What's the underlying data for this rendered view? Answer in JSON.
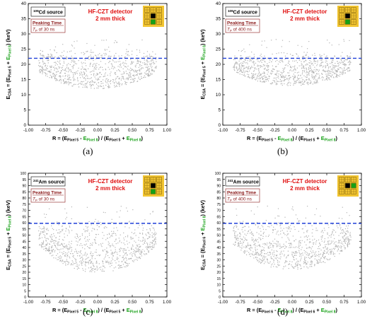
{
  "colors": {
    "points": "#b4b4b4",
    "dashline": "#1f3fd8",
    "red": "#e01010",
    "green": "#16a016",
    "brown": "#8b1a1a",
    "chip_bg": "#f2c531"
  },
  "chart_data": [
    {
      "type": "scatter",
      "caption": "(a)",
      "source_sup": "109",
      "source_txt": "Cd source",
      "detector": "HF-CZT detector",
      "thickness": "2 mm thick",
      "peak_title": "Peaking Time",
      "peak_val_pre": "T",
      "peak_val_sub": "P",
      "peak_val_post": " of 30 ns",
      "xlim": [
        -1.0,
        1.0
      ],
      "ylim": [
        0,
        40
      ],
      "xticks": [
        "-1.00",
        "-0.75",
        "-0.50",
        "-0.25",
        "0.00",
        "0.25",
        "0.50",
        "0.75",
        "1.00"
      ],
      "yticks": [
        "0",
        "5",
        "10",
        "15",
        "20",
        "25",
        "30",
        "35",
        "40"
      ],
      "hline": 22,
      "cloud_y": [
        12,
        25
      ],
      "xlabel": {
        "p1": "R = (E",
        "s1": "Pixel 5",
        "p2": " - ",
        "g1": "E",
        "gs1": "Pixel 8",
        "p3": ") / (E",
        "s2": "Pixel 5",
        "p4": " + ",
        "g2": "E",
        "gs2": "Pixel 8",
        "p5": ")"
      },
      "ylabel": {
        "p1": "E",
        "s1": "CSA",
        "p2": " = (E",
        "s2": "Pixel 5",
        "p3": " + ",
        "g1": "E",
        "gs1": "Pixel 8",
        "p4": ")   (keV)"
      }
    },
    {
      "type": "scatter",
      "caption": "(b)",
      "source_sup": "109",
      "source_txt": "Cd source",
      "detector": "HF-CZT detector",
      "thickness": "2 mm thick",
      "peak_title": "Peaking Time",
      "peak_val_pre": "T",
      "peak_val_sub": "P",
      "peak_val_post": " of 400 ns",
      "xlim": [
        -1.0,
        1.0
      ],
      "ylim": [
        0,
        40
      ],
      "xticks": [
        "-1.00",
        "-0.75",
        "-0.50",
        "-0.25",
        "0.00",
        "0.25",
        "0.50",
        "0.75",
        "1.00"
      ],
      "yticks": [
        "0",
        "5",
        "10",
        "15",
        "20",
        "25",
        "30",
        "35",
        "40"
      ],
      "hline": 22,
      "cloud_y": [
        13,
        24
      ],
      "xlabel": {
        "p1": "R = (E",
        "s1": "Pixel 5",
        "p2": " - ",
        "g1": "E",
        "gs1": "Pixel 8",
        "p3": ") / (E",
        "s2": "Pixel 5",
        "p4": " + ",
        "g2": "E",
        "gs2": "Pixel 8",
        "p5": ")"
      },
      "ylabel": {
        "p1": "E",
        "s1": "CSA",
        "p2": " = (E",
        "s2": "Pixel 5",
        "p3": " + ",
        "g1": "E",
        "gs1": "Pixel 8",
        "p4": ")   (keV)"
      }
    },
    {
      "type": "scatter",
      "caption": "(c)",
      "source_sup": "241",
      "source_txt": "Am source",
      "detector": "HF-CZT detector",
      "thickness": "2 mm thick",
      "peak_title": "Peaking Time",
      "peak_val_pre": "T",
      "peak_val_sub": "P",
      "peak_val_post": " of 30 ns",
      "xlim": [
        -1.0,
        1.0
      ],
      "ylim": [
        0,
        100
      ],
      "xticks": [
        "-1.00",
        "-0.75",
        "-0.50",
        "-0.25",
        "0.00",
        "0.25",
        "0.50",
        "0.75",
        "1.00"
      ],
      "yticks": [
        "0",
        "5",
        "10",
        "15",
        "20",
        "25",
        "30",
        "35",
        "40",
        "45",
        "50",
        "55",
        "60",
        "65",
        "70",
        "75",
        "80",
        "85",
        "90",
        "95",
        "100"
      ],
      "hline": 59.5,
      "cloud_y": [
        20,
        61
      ],
      "xlabel": {
        "p1": "R = (E",
        "s1": "Pixel 5",
        "p2": " - ",
        "g1": "E",
        "gs1": "Pixel 8",
        "p3": ") / (E",
        "s2": "Pixel 5",
        "p4": " + ",
        "g2": "E",
        "gs2": "Pixel 8",
        "p5": ")"
      },
      "ylabel": {
        "p1": "E",
        "s1": "CSA",
        "p2": " = (E",
        "s2": "Pixel 5",
        "p3": " + ",
        "g1": "E",
        "gs1": "Pixel 8",
        "p4": ")   (keV)"
      }
    },
    {
      "type": "scatter",
      "caption": "(d)",
      "source_sup": "241",
      "source_txt": "Am source",
      "detector": "HF-CZT detector",
      "thickness": "2 mm thick",
      "peak_title": "Peaking Time",
      "peak_val_pre": "T",
      "peak_val_sub": "P",
      "peak_val_post": " of 400 ns",
      "xlim": [
        -1.0,
        1.0
      ],
      "ylim": [
        0,
        100
      ],
      "xticks": [
        "-1.00",
        "-0.75",
        "-0.50",
        "-0.25",
        "0.00",
        "0.25",
        "0.50",
        "0.75",
        "1.00"
      ],
      "yticks": [
        "0",
        "5",
        "10",
        "15",
        "20",
        "25",
        "30",
        "35",
        "40",
        "45",
        "50",
        "55",
        "60",
        "65",
        "70",
        "75",
        "80",
        "85",
        "90",
        "95",
        "100"
      ],
      "hline": 59.5,
      "cloud_y": [
        22,
        61
      ],
      "xlabel": {
        "p1": "R = (E",
        "s1": "Pixel 6",
        "p2": " - ",
        "g1": "E",
        "gs1": "Pixel 8",
        "p3": ") / (E",
        "s2": "Pixel 6",
        "p4": " + ",
        "g2": "E",
        "gs2": "Pixel 8",
        "p5": ")"
      },
      "ylabel": {
        "p1": "E",
        "s1": "CSA",
        "p2": " = (E",
        "s2": "Pixel 6",
        "p3": " + ",
        "g1": "E",
        "gs1": "Pixel 8",
        "p4": ")   (keV)"
      }
    }
  ]
}
